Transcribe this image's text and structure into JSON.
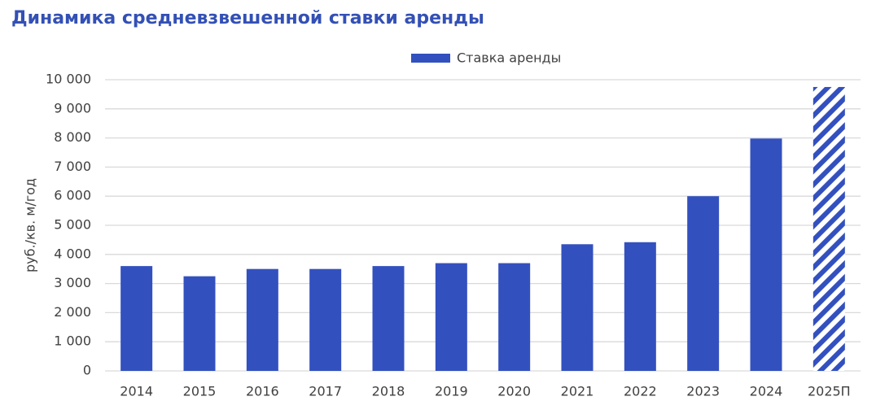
{
  "chart_data": {
    "type": "bar",
    "title": "Динамика средневзвешенной ставки аренды",
    "ylabel": "руб./кв. м/год",
    "xlabel": "",
    "categories": [
      "2014",
      "2015",
      "2016",
      "2017",
      "2018",
      "2019",
      "2020",
      "2021",
      "2022",
      "2023",
      "2024",
      "2025П"
    ],
    "series": [
      {
        "name": "Ставка аренды",
        "values": [
          3600,
          3250,
          3500,
          3500,
          3600,
          3700,
          3700,
          4350,
          4420,
          6000,
          7980,
          9750
        ],
        "color": "#3350bf",
        "forecast_categories": [
          "2025П"
        ],
        "forecast_style": "diagonal-hatch"
      }
    ],
    "ylim": [
      0,
      10000
    ],
    "yticks": [
      0,
      1000,
      2000,
      3000,
      4000,
      5000,
      6000,
      7000,
      8000,
      9000,
      10000
    ],
    "ytick_labels": [
      "0",
      "1 000",
      "2 000",
      "3 000",
      "4 000",
      "5 000",
      "6 000",
      "7 000",
      "8 000",
      "9 000",
      "10 000"
    ],
    "grid": true,
    "legend_position": "top-center",
    "grid_color": "#d9d9d9",
    "title_color": "#3350b5"
  }
}
